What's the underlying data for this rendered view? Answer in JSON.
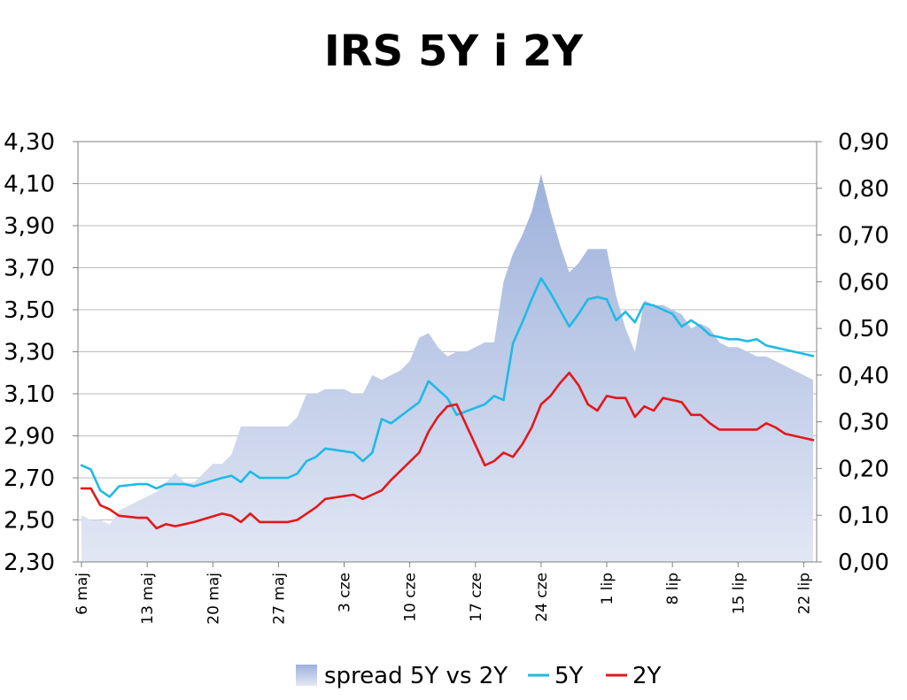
{
  "chart_data": {
    "type": "line",
    "title": "IRS 5Y i 2Y",
    "x_tick_labels": [
      "6 maj",
      "13 maj",
      "20 maj",
      "27 maj",
      "3 cze",
      "10 cze",
      "17 cze",
      "24 cze",
      "1 lip",
      "8 lip",
      "15 lip",
      "22 lip"
    ],
    "y_left": {
      "ylim": [
        2.3,
        4.3
      ],
      "ticks": [
        "2,30",
        "2,50",
        "2,70",
        "2,90",
        "3,10",
        "3,30",
        "3,50",
        "3,70",
        "3,90",
        "4,10",
        "4,30"
      ]
    },
    "y_right": {
      "ylim": [
        0.0,
        0.9
      ],
      "ticks": [
        "0,00",
        "0,10",
        "0,20",
        "0,30",
        "0,40",
        "0,50",
        "0,60",
        "0,70",
        "0,80",
        "0,90"
      ]
    },
    "grid": true,
    "legend_position": "bottom",
    "series": [
      {
        "name": "spread 5Y vs 2Y",
        "kind": "area",
        "axis": "right",
        "color": "#b8c6e6",
        "points": [
          [
            0,
            0.1
          ],
          [
            1,
            0.09
          ],
          [
            2,
            0.09
          ],
          [
            3,
            0.08
          ],
          [
            4,
            0.11
          ],
          [
            5,
            0.12
          ],
          [
            6,
            0.13
          ],
          [
            7,
            0.14
          ],
          [
            8,
            0.15
          ],
          [
            9,
            0.17
          ],
          [
            10,
            0.19
          ],
          [
            11,
            0.17
          ],
          [
            12,
            0.17
          ],
          [
            13,
            0.19
          ],
          [
            14,
            0.21
          ],
          [
            15,
            0.21
          ],
          [
            16,
            0.23
          ],
          [
            17,
            0.29
          ],
          [
            18,
            0.29
          ],
          [
            19,
            0.29
          ],
          [
            20,
            0.29
          ],
          [
            21,
            0.29
          ],
          [
            22,
            0.29
          ],
          [
            23,
            0.31
          ],
          [
            24,
            0.36
          ],
          [
            25,
            0.36
          ],
          [
            26,
            0.37
          ],
          [
            27,
            0.37
          ],
          [
            28,
            0.37
          ],
          [
            29,
            0.36
          ],
          [
            30,
            0.36
          ],
          [
            31,
            0.4
          ],
          [
            32,
            0.39
          ],
          [
            33,
            0.4
          ],
          [
            34,
            0.41
          ],
          [
            35,
            0.43
          ],
          [
            36,
            0.48
          ],
          [
            37,
            0.49
          ],
          [
            38,
            0.46
          ],
          [
            39,
            0.44
          ],
          [
            40,
            0.45
          ],
          [
            41,
            0.45
          ],
          [
            42,
            0.46
          ],
          [
            43,
            0.47
          ],
          [
            44,
            0.47
          ],
          [
            45,
            0.6
          ],
          [
            46,
            0.66
          ],
          [
            47,
            0.7
          ],
          [
            48,
            0.75
          ],
          [
            49,
            0.83
          ],
          [
            50,
            0.75
          ],
          [
            51,
            0.68
          ],
          [
            52,
            0.62
          ],
          [
            53,
            0.64
          ],
          [
            54,
            0.67
          ],
          [
            55,
            0.67
          ],
          [
            56,
            0.67
          ],
          [
            57,
            0.57
          ],
          [
            58,
            0.5
          ],
          [
            59,
            0.45
          ],
          [
            60,
            0.56
          ],
          [
            61,
            0.55
          ],
          [
            62,
            0.55
          ],
          [
            63,
            0.54
          ],
          [
            64,
            0.53
          ],
          [
            65,
            0.5
          ],
          [
            66,
            0.51
          ],
          [
            67,
            0.5
          ],
          [
            68,
            0.47
          ],
          [
            69,
            0.46
          ],
          [
            70,
            0.46
          ],
          [
            71,
            0.45
          ],
          [
            72,
            0.44
          ],
          [
            73,
            0.44
          ],
          [
            74,
            0.43
          ],
          [
            75,
            0.42
          ],
          [
            76,
            0.41
          ],
          [
            77,
            0.4
          ],
          [
            78,
            0.39
          ]
        ]
      },
      {
        "name": "5Y",
        "kind": "line",
        "axis": "left",
        "color": "#1ebae6",
        "points": [
          [
            0,
            2.76
          ],
          [
            1,
            2.74
          ],
          [
            2,
            2.64
          ],
          [
            3,
            2.61
          ],
          [
            4,
            2.66
          ],
          [
            6,
            2.67
          ],
          [
            7,
            2.67
          ],
          [
            8,
            2.65
          ],
          [
            9,
            2.67
          ],
          [
            10,
            2.67
          ],
          [
            11,
            2.67
          ],
          [
            12,
            2.66
          ],
          [
            15,
            2.7
          ],
          [
            16,
            2.71
          ],
          [
            17,
            2.68
          ],
          [
            18,
            2.73
          ],
          [
            19,
            2.7
          ],
          [
            22,
            2.7
          ],
          [
            23,
            2.72
          ],
          [
            24,
            2.78
          ],
          [
            25,
            2.8
          ],
          [
            26,
            2.84
          ],
          [
            29,
            2.82
          ],
          [
            30,
            2.78
          ],
          [
            31,
            2.82
          ],
          [
            32,
            2.98
          ],
          [
            33,
            2.96
          ],
          [
            36,
            3.06
          ],
          [
            37,
            3.16
          ],
          [
            38,
            3.12
          ],
          [
            39,
            3.08
          ],
          [
            40,
            3.0
          ],
          [
            43,
            3.05
          ],
          [
            44,
            3.09
          ],
          [
            45,
            3.07
          ],
          [
            46,
            3.34
          ],
          [
            47,
            3.44
          ],
          [
            48,
            3.55
          ],
          [
            49,
            3.65
          ],
          [
            50,
            3.58
          ],
          [
            51,
            3.5
          ],
          [
            52,
            3.42
          ],
          [
            53,
            3.48
          ],
          [
            54,
            3.55
          ],
          [
            55,
            3.56
          ],
          [
            56,
            3.55
          ],
          [
            57,
            3.45
          ],
          [
            58,
            3.49
          ],
          [
            59,
            3.44
          ],
          [
            60,
            3.53
          ],
          [
            61,
            3.52
          ],
          [
            62,
            3.5
          ],
          [
            63,
            3.48
          ],
          [
            64,
            3.42
          ],
          [
            65,
            3.45
          ],
          [
            66,
            3.42
          ],
          [
            67,
            3.38
          ],
          [
            68,
            3.37
          ],
          [
            69,
            3.36
          ],
          [
            70,
            3.36
          ],
          [
            71,
            3.35
          ],
          [
            72,
            3.36
          ],
          [
            73,
            3.33
          ],
          [
            74,
            3.32
          ],
          [
            75,
            3.31
          ],
          [
            76,
            3.3
          ],
          [
            77,
            3.29
          ],
          [
            78,
            3.28
          ]
        ]
      },
      {
        "name": "2Y",
        "kind": "line",
        "axis": "left",
        "color": "#e3181b",
        "points": [
          [
            0,
            2.65
          ],
          [
            1,
            2.65
          ],
          [
            2,
            2.57
          ],
          [
            3,
            2.55
          ],
          [
            4,
            2.52
          ],
          [
            6,
            2.51
          ],
          [
            7,
            2.51
          ],
          [
            8,
            2.46
          ],
          [
            9,
            2.48
          ],
          [
            10,
            2.47
          ],
          [
            11,
            2.48
          ],
          [
            12,
            2.49
          ],
          [
            15,
            2.53
          ],
          [
            16,
            2.52
          ],
          [
            17,
            2.49
          ],
          [
            18,
            2.53
          ],
          [
            19,
            2.49
          ],
          [
            22,
            2.49
          ],
          [
            23,
            2.5
          ],
          [
            24,
            2.53
          ],
          [
            25,
            2.56
          ],
          [
            26,
            2.6
          ],
          [
            29,
            2.62
          ],
          [
            30,
            2.6
          ],
          [
            31,
            2.62
          ],
          [
            32,
            2.64
          ],
          [
            33,
            2.69
          ],
          [
            36,
            2.82
          ],
          [
            37,
            2.92
          ],
          [
            38,
            2.99
          ],
          [
            39,
            3.04
          ],
          [
            40,
            3.05
          ],
          [
            43,
            2.76
          ],
          [
            44,
            2.78
          ],
          [
            45,
            2.82
          ],
          [
            46,
            2.8
          ],
          [
            47,
            2.86
          ],
          [
            48,
            2.94
          ],
          [
            49,
            3.05
          ],
          [
            50,
            3.09
          ],
          [
            51,
            3.15
          ],
          [
            52,
            3.2
          ],
          [
            53,
            3.14
          ],
          [
            54,
            3.05
          ],
          [
            55,
            3.02
          ],
          [
            56,
            3.09
          ],
          [
            57,
            3.08
          ],
          [
            58,
            3.08
          ],
          [
            59,
            2.99
          ],
          [
            60,
            3.04
          ],
          [
            61,
            3.02
          ],
          [
            62,
            3.08
          ],
          [
            63,
            3.07
          ],
          [
            64,
            3.06
          ],
          [
            65,
            3.0
          ],
          [
            66,
            3.0
          ],
          [
            67,
            2.96
          ],
          [
            68,
            2.93
          ],
          [
            69,
            2.93
          ],
          [
            70,
            2.93
          ],
          [
            71,
            2.93
          ],
          [
            72,
            2.93
          ],
          [
            73,
            2.96
          ],
          [
            74,
            2.94
          ],
          [
            75,
            2.91
          ],
          [
            76,
            2.9
          ],
          [
            77,
            2.89
          ],
          [
            78,
            2.88
          ]
        ]
      }
    ]
  }
}
